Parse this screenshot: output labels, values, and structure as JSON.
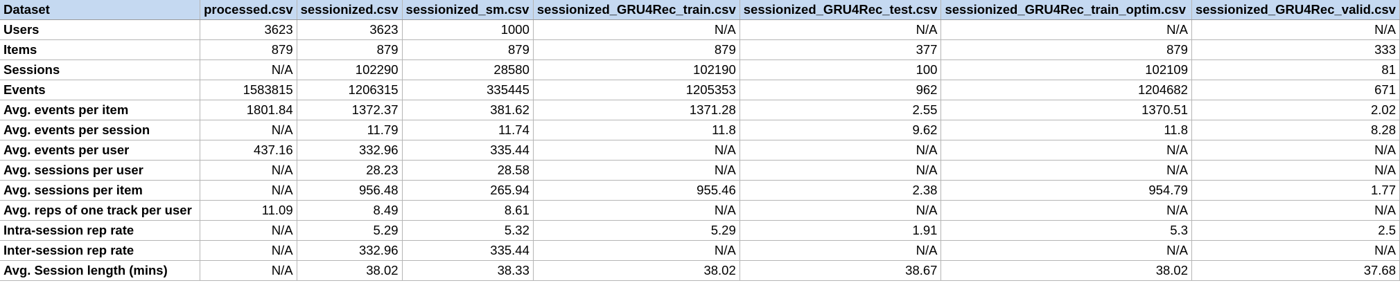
{
  "table": {
    "headers": [
      "Dataset",
      "processed.csv",
      "sessionized.csv",
      "sessionized_sm.csv",
      "sessionized_GRU4Rec_train.csv",
      "sessionized_GRU4Rec_test.csv",
      "sessionized_GRU4Rec_train_optim.csv",
      "sessionized_GRU4Rec_valid.csv"
    ],
    "rows": [
      [
        "Users",
        "3623",
        "3623",
        "1000",
        "N/A",
        "N/A",
        "N/A",
        "N/A"
      ],
      [
        "Items",
        "879",
        "879",
        "879",
        "879",
        "377",
        "879",
        "333"
      ],
      [
        "Sessions",
        "N/A",
        "102290",
        "28580",
        "102190",
        "100",
        "102109",
        "81"
      ],
      [
        "Events",
        "1583815",
        "1206315",
        "335445",
        "1205353",
        "962",
        "1204682",
        "671"
      ],
      [
        "Avg. events per item",
        "1801.84",
        "1372.37",
        "381.62",
        "1371.28",
        "2.55",
        "1370.51",
        "2.02"
      ],
      [
        "Avg. events per session",
        "N/A",
        "11.79",
        "11.74",
        "11.8",
        "9.62",
        "11.8",
        "8.28"
      ],
      [
        "Avg. events per user",
        "437.16",
        "332.96",
        "335.44",
        "N/A",
        "N/A",
        "N/A",
        "N/A"
      ],
      [
        "Avg. sessions per user",
        "N/A",
        "28.23",
        "28.58",
        "N/A",
        "N/A",
        "N/A",
        "N/A"
      ],
      [
        "Avg. sessions per item",
        "N/A",
        "956.48",
        "265.94",
        "955.46",
        "2.38",
        "954.79",
        "1.77"
      ],
      [
        "Avg. reps of one track per user",
        "11.09",
        "8.49",
        "8.61",
        "N/A",
        "N/A",
        "N/A",
        "N/A"
      ],
      [
        "Intra-session rep rate",
        "N/A",
        "5.29",
        "5.32",
        "5.29",
        "1.91",
        "5.3",
        "2.5"
      ],
      [
        "Inter-session rep rate",
        "N/A",
        "332.96",
        "335.44",
        "N/A",
        "N/A",
        "N/A",
        "N/A"
      ],
      [
        "Avg. Session length (mins)",
        "N/A",
        "38.02",
        "38.33",
        "38.02",
        "38.67",
        "38.02",
        "37.68"
      ]
    ]
  }
}
